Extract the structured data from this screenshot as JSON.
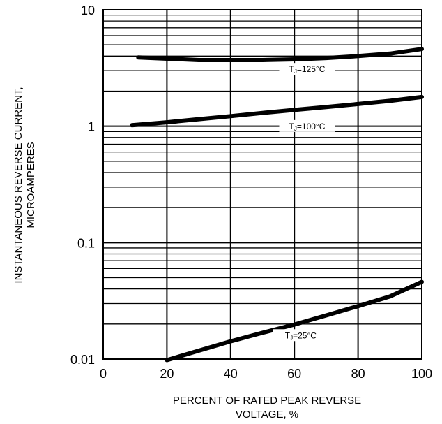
{
  "chart_data": {
    "type": "line",
    "title": "",
    "xlabel_lines": [
      "PERCENT OF RATED PEAK REVERSE",
      "VOLTAGE, %"
    ],
    "ylabel_lines": [
      "INSTANTANEOUS REVERSE CURRENT,",
      "MICROAMPERES"
    ],
    "xlim": [
      0,
      100
    ],
    "ylim": [
      0.01,
      10
    ],
    "y_scale": "log",
    "grid": true,
    "x_ticks": [
      0,
      20,
      40,
      60,
      80,
      100
    ],
    "x_tick_labels": [
      "0",
      "20",
      "40",
      "60",
      "80",
      "100"
    ],
    "y_ticks": [
      0.01,
      0.1,
      1,
      10
    ],
    "y_tick_labels": [
      "0.01",
      "0.1",
      "1",
      "10"
    ],
    "line_color": "#000000",
    "series": [
      {
        "label_main": "T",
        "label_sub": "J",
        "label_rest": "=125°C",
        "label_at": [
          64,
          3.0
        ],
        "x": [
          11,
          20,
          30,
          40,
          50,
          60,
          70,
          80,
          90,
          100
        ],
        "y": [
          3.9,
          3.8,
          3.7,
          3.7,
          3.7,
          3.75,
          3.85,
          4.0,
          4.2,
          4.6
        ]
      },
      {
        "label_main": "T",
        "label_sub": "J",
        "label_rest": "=100°C",
        "label_at": [
          64,
          0.97
        ],
        "x": [
          9,
          20,
          30,
          40,
          50,
          60,
          70,
          80,
          90,
          100
        ],
        "y": [
          1.02,
          1.08,
          1.15,
          1.22,
          1.3,
          1.38,
          1.46,
          1.55,
          1.65,
          1.78
        ]
      },
      {
        "label_main": "T",
        "label_sub": "J",
        "label_rest": "=25°C",
        "label_at": [
          62,
          0.0155
        ],
        "x": [
          20,
          30,
          40,
          50,
          60,
          70,
          80,
          90,
          100
        ],
        "y": [
          0.0098,
          0.0118,
          0.0142,
          0.0168,
          0.0198,
          0.0237,
          0.0285,
          0.0345,
          0.046
        ]
      }
    ]
  }
}
